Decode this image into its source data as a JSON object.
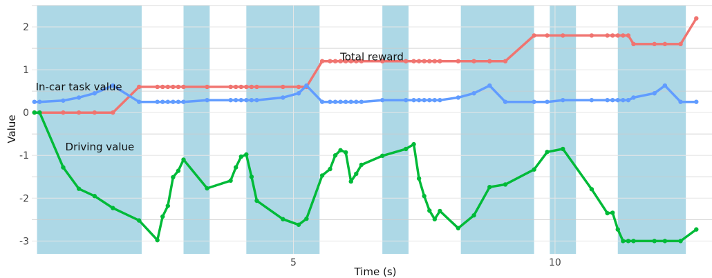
{
  "chart_data": {
    "type": "line",
    "title": "",
    "xlabel": "Time (s)",
    "ylabel": "Value",
    "xlim": [
      0,
      13.0
    ],
    "ylim": [
      -3.3,
      2.5
    ],
    "grid": true,
    "x_ticks": [
      5,
      10
    ],
    "y_ticks": [
      -3,
      -2,
      -1,
      0,
      1,
      2
    ],
    "x_tick_labels": [
      "5",
      "10"
    ],
    "y_tick_labels": [
      "-3",
      "-2",
      "-1",
      "0",
      "1",
      "2"
    ],
    "shaded_intervals": [
      [
        0.1,
        2.1
      ],
      [
        2.9,
        3.4
      ],
      [
        4.1,
        5.5
      ],
      [
        6.7,
        7.2
      ],
      [
        8.2,
        9.6
      ],
      [
        9.9,
        10.4
      ],
      [
        11.2,
        12.5
      ]
    ],
    "shade_color": "#add8e6",
    "annotations": [
      {
        "text": "Total reward",
        "x": 6.5,
        "y": 1.3
      },
      {
        "text": "In-car task value",
        "x": 0.9,
        "y": 0.6
      },
      {
        "text": "Driving value",
        "x": 1.3,
        "y": -0.8
      }
    ],
    "series": [
      {
        "key": "reward",
        "color": "#f07470",
        "x": [
          0.05,
          0.15,
          0.6,
          0.9,
          1.2,
          1.55,
          2.05,
          2.4,
          2.5,
          2.6,
          2.7,
          2.8,
          2.9,
          3.35,
          3.8,
          3.9,
          4.0,
          4.1,
          4.2,
          4.3,
          4.8,
          5.1,
          5.25,
          5.55,
          5.7,
          5.8,
          5.9,
          6.0,
          6.1,
          6.2,
          6.3,
          6.7,
          7.15,
          7.3,
          7.4,
          7.5,
          7.6,
          7.7,
          7.8,
          8.15,
          8.45,
          8.75,
          9.05,
          9.6,
          9.85,
          10.15,
          10.7,
          11.0,
          11.1,
          11.2,
          11.3,
          11.4,
          11.5,
          11.9,
          12.1,
          12.4,
          12.7
        ],
        "values": [
          0.0,
          0.0,
          0.0,
          0.0,
          0.0,
          0.0,
          0.6,
          0.6,
          0.6,
          0.6,
          0.6,
          0.6,
          0.6,
          0.6,
          0.6,
          0.6,
          0.6,
          0.6,
          0.6,
          0.6,
          0.6,
          0.6,
          0.6,
          1.2,
          1.2,
          1.2,
          1.2,
          1.2,
          1.2,
          1.2,
          1.2,
          1.2,
          1.2,
          1.2,
          1.2,
          1.2,
          1.2,
          1.2,
          1.2,
          1.2,
          1.2,
          1.2,
          1.2,
          1.8,
          1.8,
          1.8,
          1.8,
          1.8,
          1.8,
          1.8,
          1.8,
          1.8,
          1.6,
          1.6,
          1.6,
          1.6,
          2.2
        ]
      },
      {
        "key": "incar",
        "color": "#619cff",
        "x": [
          0.05,
          0.15,
          0.6,
          0.9,
          1.2,
          1.55,
          2.05,
          2.4,
          2.5,
          2.6,
          2.7,
          2.8,
          2.9,
          3.35,
          3.8,
          3.9,
          4.0,
          4.1,
          4.2,
          4.3,
          4.8,
          5.1,
          5.25,
          5.55,
          5.7,
          5.8,
          5.9,
          6.0,
          6.1,
          6.2,
          6.3,
          6.7,
          7.15,
          7.3,
          7.4,
          7.5,
          7.6,
          7.7,
          7.8,
          8.15,
          8.45,
          8.75,
          9.05,
          9.6,
          9.85,
          10.15,
          10.7,
          11.0,
          11.1,
          11.2,
          11.3,
          11.4,
          11.5,
          11.9,
          12.1,
          12.4,
          12.7
        ],
        "values": [
          0.25,
          0.25,
          0.28,
          0.35,
          0.45,
          0.63,
          0.25,
          0.25,
          0.25,
          0.25,
          0.25,
          0.25,
          0.25,
          0.29,
          0.29,
          0.29,
          0.29,
          0.29,
          0.29,
          0.29,
          0.35,
          0.45,
          0.63,
          0.25,
          0.25,
          0.25,
          0.25,
          0.25,
          0.25,
          0.25,
          0.25,
          0.29,
          0.29,
          0.29,
          0.29,
          0.29,
          0.29,
          0.29,
          0.29,
          0.35,
          0.45,
          0.63,
          0.25,
          0.25,
          0.25,
          0.29,
          0.29,
          0.29,
          0.29,
          0.29,
          0.29,
          0.29,
          0.35,
          0.45,
          0.63,
          0.25,
          0.25
        ]
      },
      {
        "key": "driving",
        "color": "#00ba38",
        "x": [
          0.05,
          0.15,
          0.6,
          0.9,
          1.2,
          1.55,
          2.05,
          2.4,
          2.5,
          2.6,
          2.7,
          2.8,
          2.9,
          3.35,
          3.8,
          3.9,
          4.0,
          4.1,
          4.2,
          4.3,
          4.8,
          5.1,
          5.25,
          5.55,
          5.7,
          5.8,
          5.9,
          6.0,
          6.1,
          6.2,
          6.3,
          6.7,
          7.15,
          7.3,
          7.4,
          7.5,
          7.6,
          7.7,
          7.8,
          8.15,
          8.45,
          8.75,
          9.05,
          9.6,
          9.85,
          10.15,
          10.7,
          11.0,
          11.1,
          11.2,
          11.3,
          11.4,
          11.5,
          11.9,
          12.1,
          12.4,
          12.7
        ],
        "values": [
          0.0,
          0.0,
          -1.28,
          -1.78,
          -1.95,
          -2.23,
          -2.52,
          -2.98,
          -2.43,
          -2.18,
          -1.51,
          -1.36,
          -1.1,
          -1.77,
          -1.59,
          -1.28,
          -1.03,
          -0.98,
          -1.5,
          -2.06,
          -2.49,
          -2.62,
          -2.48,
          -1.47,
          -1.32,
          -1.0,
          -0.88,
          -0.93,
          -1.61,
          -1.43,
          -1.22,
          -1.01,
          -0.85,
          -0.74,
          -1.54,
          -1.95,
          -2.29,
          -2.49,
          -2.3,
          -2.7,
          -2.4,
          -1.74,
          -1.68,
          -1.33,
          -0.92,
          -0.85,
          -1.79,
          -2.35,
          -2.34,
          -2.73,
          -3.0,
          -3.0,
          -3.0,
          -3.0,
          -3.0,
          -3.0,
          -2.73
        ]
      }
    ]
  }
}
